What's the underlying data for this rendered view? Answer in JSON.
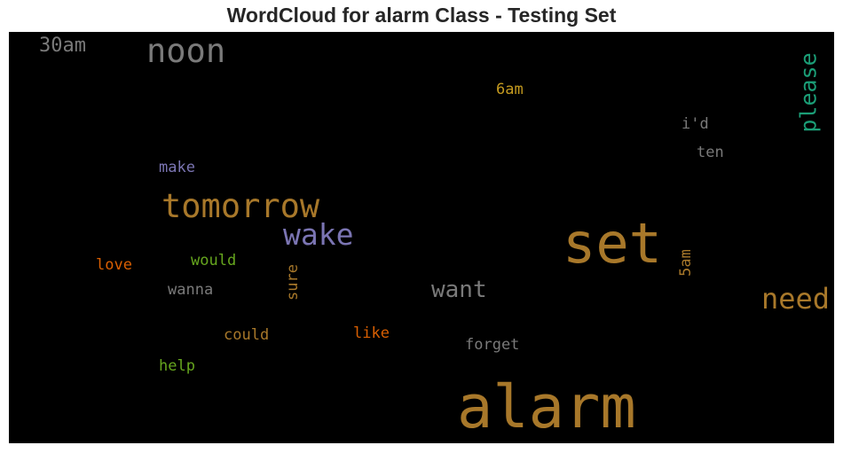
{
  "chart_data": {
    "type": "wordcloud",
    "title": "WordCloud for alarm Class - Testing Set",
    "background": "#000000",
    "words": [
      {
        "text": "alarm",
        "color": "#a8782a",
        "orientation": "horizontal"
      },
      {
        "text": "set",
        "color": "#a8782a",
        "orientation": "horizontal"
      },
      {
        "text": "tomorrow",
        "color": "#a8782a",
        "orientation": "horizontal"
      },
      {
        "text": "noon",
        "color": "#7a7a7a",
        "orientation": "horizontal"
      },
      {
        "text": "wake",
        "color": "#7b75b3",
        "orientation": "horizontal"
      },
      {
        "text": "need",
        "color": "#a8782a",
        "orientation": "horizontal"
      },
      {
        "text": "please",
        "color": "#1b9e77",
        "orientation": "vertical"
      },
      {
        "text": "want",
        "color": "#7a7a7a",
        "orientation": "horizontal"
      },
      {
        "text": "30am",
        "color": "#7a7a7a",
        "orientation": "horizontal"
      },
      {
        "text": "6am",
        "color": "#c49a1f",
        "orientation": "horizontal"
      },
      {
        "text": "i'd",
        "color": "#7a7a7a",
        "orientation": "horizontal"
      },
      {
        "text": "ten",
        "color": "#7a7a7a",
        "orientation": "horizontal"
      },
      {
        "text": "make",
        "color": "#7b75b3",
        "orientation": "horizontal"
      },
      {
        "text": "love",
        "color": "#d95f02",
        "orientation": "horizontal"
      },
      {
        "text": "would",
        "color": "#66a61e",
        "orientation": "horizontal"
      },
      {
        "text": "wanna",
        "color": "#7a7a7a",
        "orientation": "horizontal"
      },
      {
        "text": "sure",
        "color": "#a8782a",
        "orientation": "vertical"
      },
      {
        "text": "5am",
        "color": "#a8782a",
        "orientation": "vertical"
      },
      {
        "text": "could",
        "color": "#a8782a",
        "orientation": "horizontal"
      },
      {
        "text": "like",
        "color": "#d95f02",
        "orientation": "horizontal"
      },
      {
        "text": "forget",
        "color": "#7a7a7a",
        "orientation": "horizontal"
      },
      {
        "text": "help",
        "color": "#66a61e",
        "orientation": "horizontal"
      }
    ]
  }
}
